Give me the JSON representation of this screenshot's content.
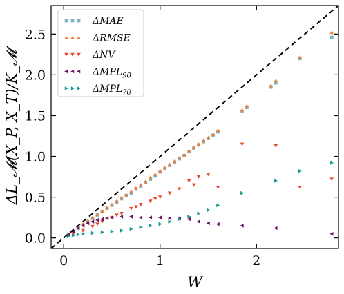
{
  "chart_data": {
    "type": "scatter",
    "title": "",
    "xlabel": "W",
    "ylabel": "ΔL_𝓜(X_P, X_T)/K_𝓜",
    "xlim": [
      -0.13,
      2.85
    ],
    "ylim": [
      -0.13,
      2.85
    ],
    "xticks": [
      0,
      1,
      2
    ],
    "yticks": [
      0.0,
      0.5,
      1.0,
      1.5,
      2.0,
      2.5
    ],
    "xtick_labels": [
      "0",
      "1",
      "2"
    ],
    "ytick_labels": [
      "0.0",
      "0.5",
      "1.0",
      "1.5",
      "2.0",
      "2.5"
    ],
    "grid": false,
    "legend_position": "top-left",
    "reference_line": {
      "style": "dashed",
      "color": "#000000",
      "slope": 1,
      "intercept": 0
    },
    "series": [
      {
        "name": "ΔMAE",
        "marker": "square",
        "color": "#7fb5c2",
        "x": [
          0.05,
          0.1,
          0.15,
          0.2,
          0.25,
          0.3,
          0.35,
          0.4,
          0.45,
          0.5,
          0.55,
          0.6,
          0.65,
          0.7,
          0.75,
          0.8,
          0.85,
          0.9,
          0.95,
          1.0,
          1.05,
          1.1,
          1.15,
          1.2,
          1.25,
          1.3,
          1.35,
          1.4,
          1.45,
          1.5,
          1.55,
          1.6,
          1.85,
          1.9,
          2.15,
          2.2,
          2.45,
          2.78
        ],
        "y": [
          0.04,
          0.08,
          0.12,
          0.16,
          0.2,
          0.24,
          0.28,
          0.32,
          0.36,
          0.4,
          0.44,
          0.48,
          0.52,
          0.55,
          0.6,
          0.63,
          0.68,
          0.72,
          0.76,
          0.81,
          0.85,
          0.89,
          0.93,
          0.97,
          1.01,
          1.06,
          1.1,
          1.14,
          1.18,
          1.22,
          1.26,
          1.3,
          1.55,
          1.6,
          1.85,
          1.9,
          2.2,
          2.46
        ]
      },
      {
        "name": "ΔRMSE",
        "marker": "triangle-up",
        "color": "#f07f3c",
        "x": [
          0.05,
          0.1,
          0.15,
          0.2,
          0.25,
          0.3,
          0.35,
          0.4,
          0.45,
          0.5,
          0.55,
          0.6,
          0.65,
          0.7,
          0.75,
          0.8,
          0.85,
          0.9,
          0.95,
          1.0,
          1.05,
          1.1,
          1.15,
          1.2,
          1.25,
          1.3,
          1.35,
          1.4,
          1.45,
          1.5,
          1.55,
          1.6,
          1.85,
          1.9,
          2.15,
          2.2,
          2.45,
          2.78
        ],
        "y": [
          0.04,
          0.09,
          0.13,
          0.17,
          0.21,
          0.25,
          0.29,
          0.33,
          0.37,
          0.41,
          0.45,
          0.49,
          0.53,
          0.57,
          0.61,
          0.65,
          0.69,
          0.74,
          0.78,
          0.82,
          0.86,
          0.9,
          0.94,
          0.98,
          1.02,
          1.07,
          1.11,
          1.15,
          1.19,
          1.23,
          1.27,
          1.32,
          1.57,
          1.62,
          1.87,
          1.93,
          2.22,
          2.52
        ]
      },
      {
        "name": "ΔNV",
        "marker": "triangle-down",
        "color": "#e8462a",
        "x": [
          0.1,
          0.2,
          0.3,
          0.35,
          0.4,
          0.5,
          0.55,
          0.6,
          0.7,
          0.75,
          0.8,
          0.9,
          0.95,
          1.0,
          1.1,
          1.2,
          1.3,
          1.35,
          1.4,
          1.5,
          1.6,
          1.85,
          2.2,
          2.45,
          2.78
        ],
        "y": [
          0.05,
          0.09,
          0.14,
          0.17,
          0.2,
          0.25,
          0.28,
          0.3,
          0.36,
          0.38,
          0.41,
          0.45,
          0.48,
          0.5,
          0.55,
          0.6,
          0.7,
          0.65,
          0.75,
          0.78,
          0.62,
          1.15,
          1.13,
          0.62,
          0.72
        ]
      },
      {
        "name": "ΔMPL_90",
        "subscript": "90",
        "marker": "triangle-left",
        "color": "#6a1262",
        "x": [
          0.05,
          0.1,
          0.15,
          0.2,
          0.25,
          0.3,
          0.35,
          0.4,
          0.45,
          0.5,
          0.6,
          0.7,
          0.8,
          0.9,
          1.0,
          1.1,
          1.2,
          1.3,
          1.4,
          1.5,
          1.6,
          1.85,
          2.2,
          2.78
        ],
        "y": [
          0.04,
          0.08,
          0.12,
          0.15,
          0.18,
          0.2,
          0.22,
          0.23,
          0.24,
          0.25,
          0.26,
          0.26,
          0.25,
          0.25,
          0.25,
          0.24,
          0.24,
          0.23,
          0.2,
          0.18,
          0.17,
          0.15,
          0.12,
          0.05
        ]
      },
      {
        "name": "ΔMPL_70",
        "subscript": "70",
        "marker": "triangle-right",
        "color": "#149c91",
        "x": [
          0.05,
          0.1,
          0.15,
          0.2,
          0.3,
          0.4,
          0.5,
          0.6,
          0.7,
          0.8,
          0.9,
          1.0,
          1.1,
          1.2,
          1.3,
          1.4,
          1.5,
          1.6,
          1.85,
          2.2,
          2.45,
          2.78
        ],
        "y": [
          0.02,
          0.03,
          0.04,
          0.05,
          0.06,
          0.07,
          0.08,
          0.09,
          0.11,
          0.13,
          0.15,
          0.17,
          0.2,
          0.23,
          0.26,
          0.3,
          0.34,
          0.4,
          0.55,
          0.7,
          0.82,
          0.92
        ]
      }
    ]
  }
}
